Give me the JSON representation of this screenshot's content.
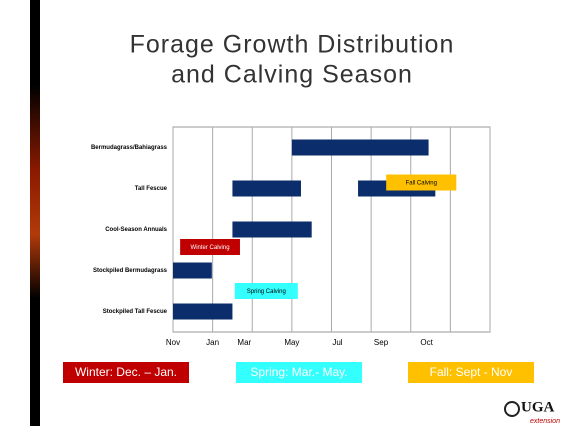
{
  "chart_data": {
    "type": "gantt",
    "title_lines": [
      "Forage Growth Distribution",
      "and Calving Season"
    ],
    "categories": [
      "Bermudagrass/Bahiagrass",
      "Tall Fescue",
      "Cool-Season Annuals",
      "Stockpiled Bermudagrass",
      "Stockpiled Tall Fescue"
    ],
    "tasks": [
      [
        [
          3.0,
          6.45
        ]
      ],
      [
        [
          1.5,
          3.23
        ],
        [
          4.67,
          6.62
        ]
      ],
      [
        [
          1.5,
          3.5
        ]
      ],
      [
        [
          0,
          0.98
        ]
      ],
      [
        [
          0,
          1.5
        ]
      ]
    ],
    "color": "#0b2d6b",
    "xlim": [
      0,
      8
    ],
    "xgrid": [
      0,
      1,
      2,
      3,
      4,
      5,
      6,
      7,
      8
    ],
    "xticks": [
      {
        "value": 0,
        "label": "Nov"
      },
      {
        "value": 1,
        "label": "Jan"
      },
      {
        "value": 1.8,
        "label": "Mar"
      },
      {
        "value": 3,
        "label": "May"
      },
      {
        "value": 4.15,
        "label": "Jul"
      },
      {
        "value": 5.25,
        "label": "Sep"
      },
      {
        "value": 6.4,
        "label": "Oct"
      }
    ],
    "annotations": [
      {
        "text": "Fall Calving",
        "start": 5.38,
        "end": 7.15,
        "color": "#ffc000"
      },
      {
        "text": "Winter Calving",
        "start": 0.18,
        "end": 1.69,
        "color": "#c00000"
      },
      {
        "text": "Spring Calving",
        "start": 1.56,
        "end": 3.15,
        "color": "#33ffff"
      }
    ],
    "legend_boxes": [
      {
        "text": "Winter: Dec. – Jan.",
        "color": "#c00000"
      },
      {
        "text": "Spring: Mar.- May.",
        "color": "#33ffff"
      },
      {
        "text": "Fall: Sept - Nov",
        "color": "#ffc000"
      }
    ],
    "logo": {
      "text": "UGA",
      "subtext": "extension"
    }
  }
}
